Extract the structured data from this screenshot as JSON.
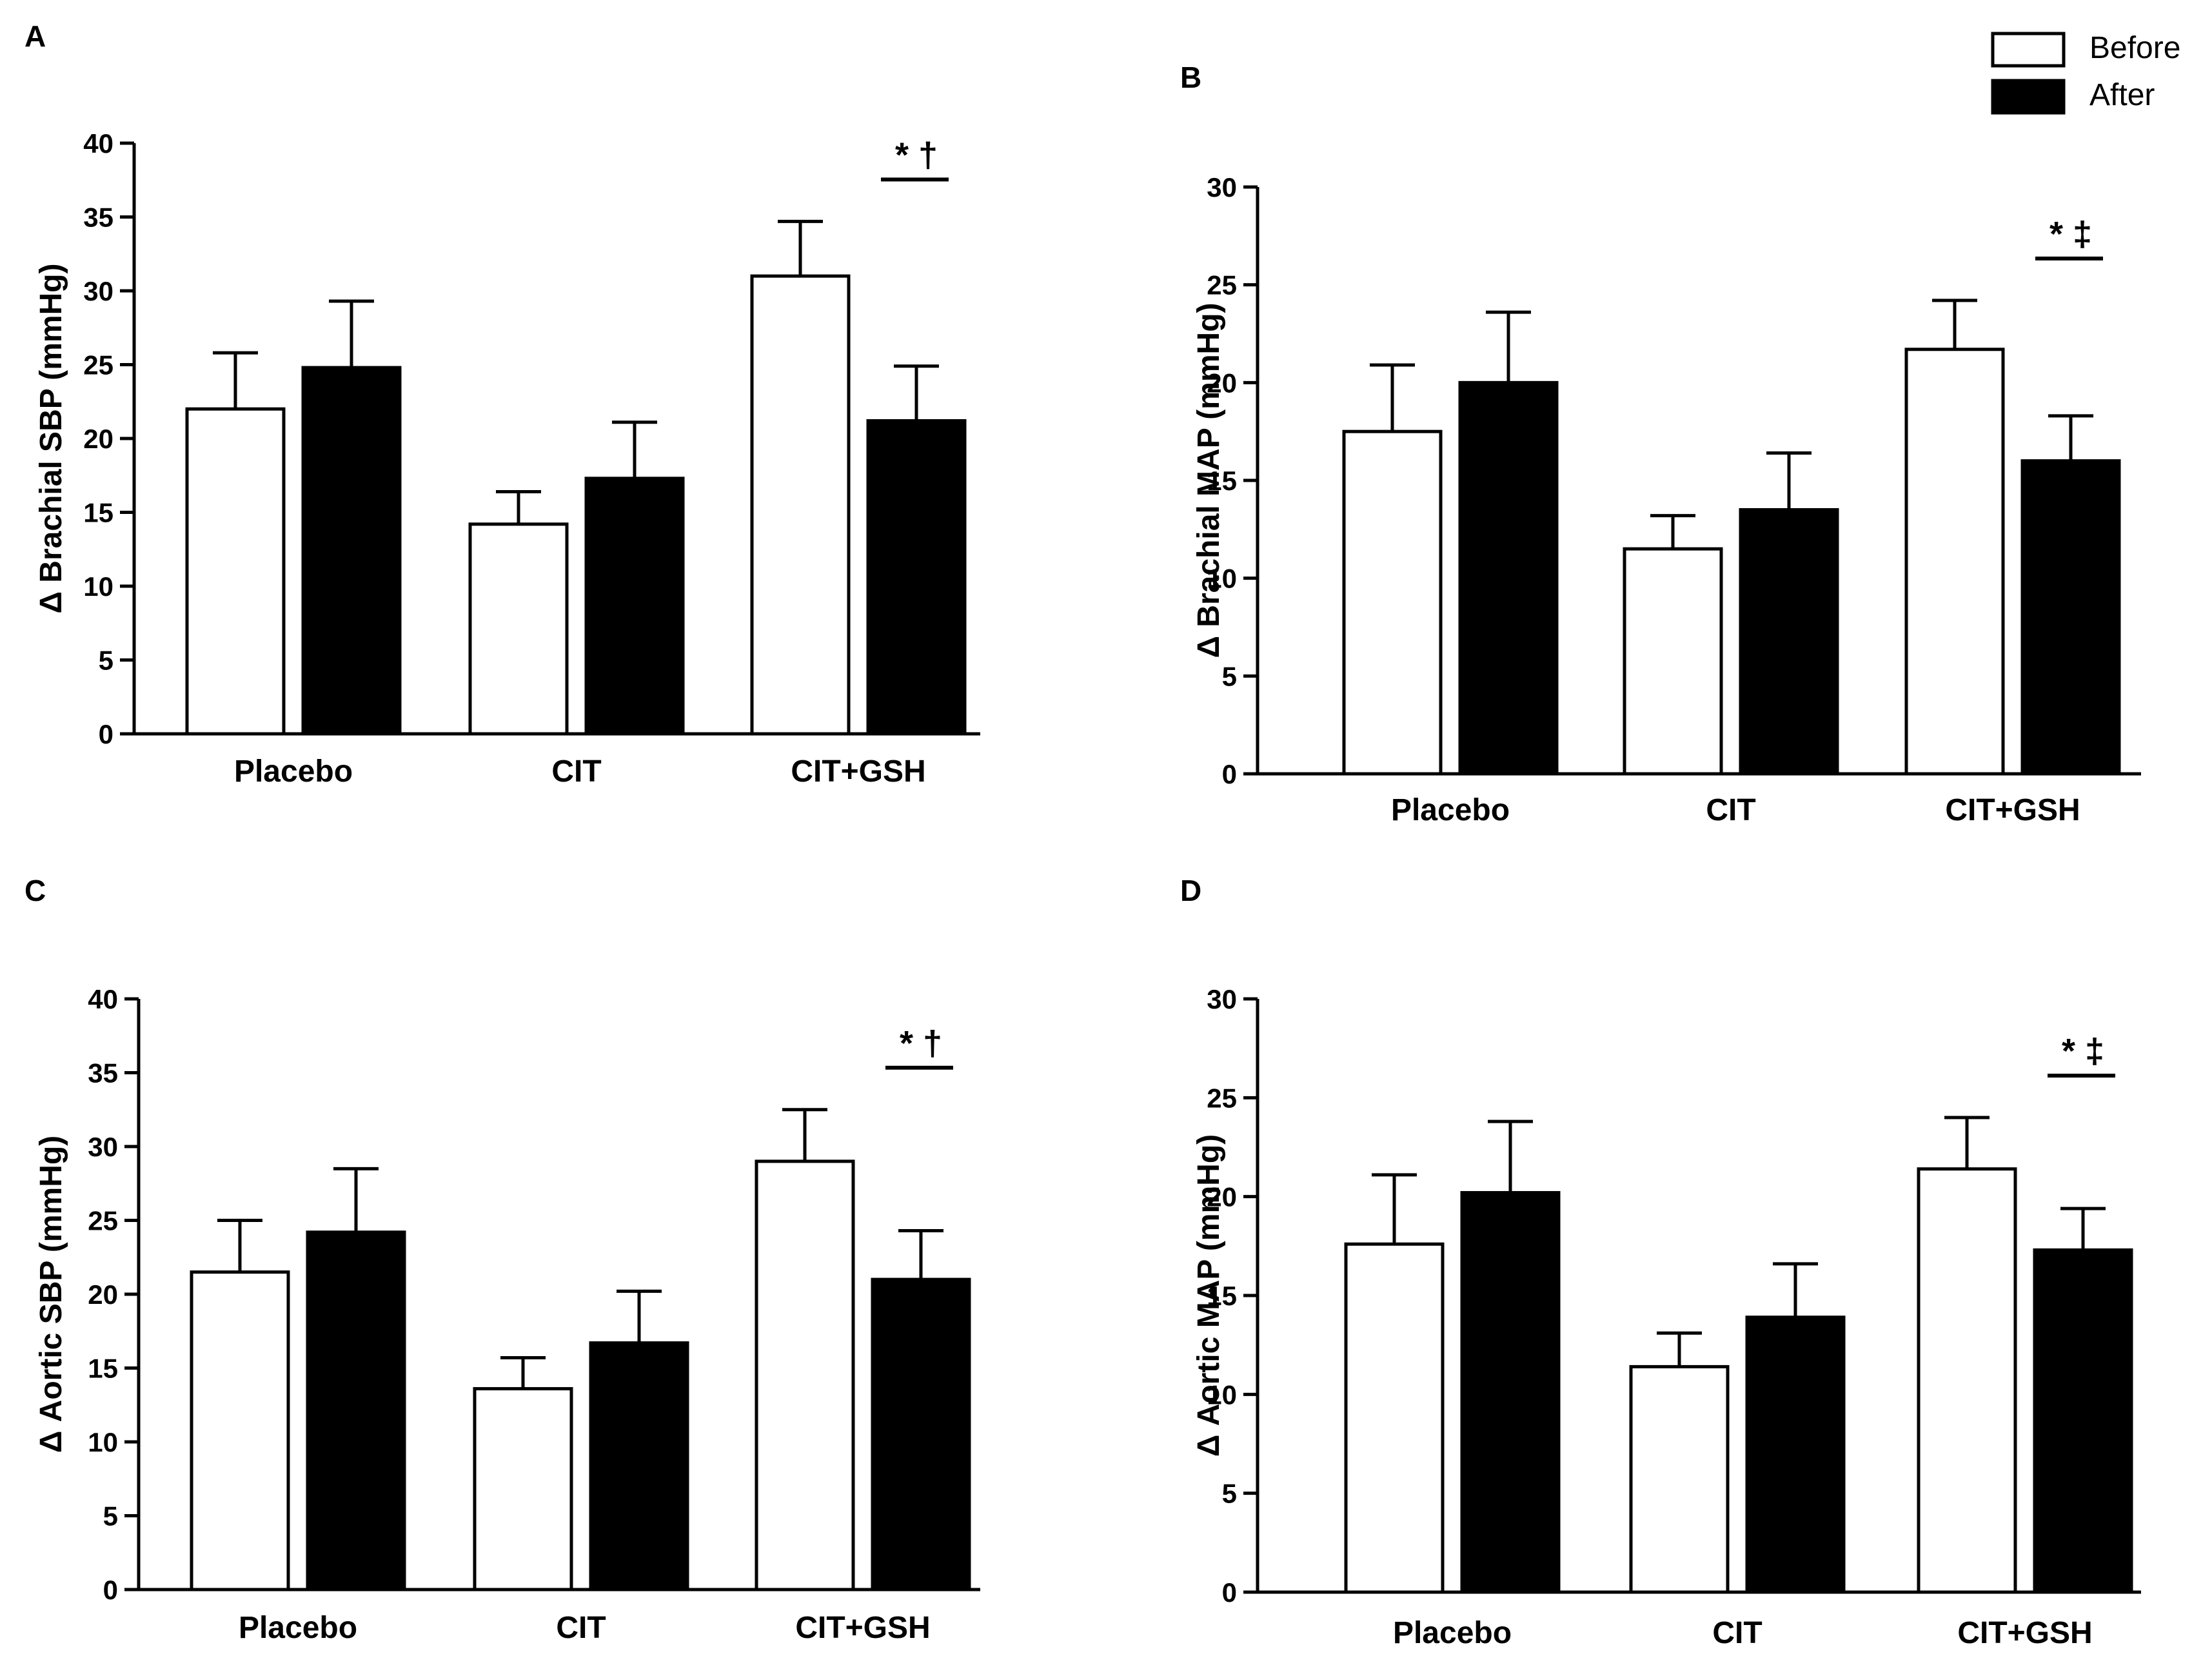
{
  "legend": [
    {
      "label": "Before",
      "color": "#ffffff"
    },
    {
      "label": "After",
      "color": "#000000"
    }
  ],
  "chart_data": [
    {
      "panel": "A",
      "type": "bar",
      "ylabel": "Δ Brachial SBP (mmHg)",
      "ylim": [
        0,
        40
      ],
      "yticks": [
        0,
        5,
        10,
        15,
        20,
        25,
        30,
        35,
        40
      ],
      "categories": [
        "Placebo",
        "CIT",
        "CIT+GSH"
      ],
      "series": [
        {
          "name": "Before",
          "values": [
            22.0,
            14.2,
            31.0
          ],
          "errors": [
            3.8,
            2.2,
            3.7
          ]
        },
        {
          "name": "After",
          "values": [
            24.8,
            17.3,
            21.2
          ],
          "errors": [
            4.5,
            3.8,
            3.7
          ]
        }
      ],
      "annotation": {
        "text": "* †",
        "category": "CIT+GSH"
      }
    },
    {
      "panel": "B",
      "type": "bar",
      "ylabel": "Δ Brachial MAP (mmHg)",
      "ylim": [
        0,
        30
      ],
      "yticks": [
        0,
        5,
        10,
        15,
        20,
        25,
        30
      ],
      "categories": [
        "Placebo",
        "CIT",
        "CIT+GSH"
      ],
      "series": [
        {
          "name": "Before",
          "values": [
            17.5,
            11.5,
            21.7
          ],
          "errors": [
            3.4,
            1.7,
            2.5
          ]
        },
        {
          "name": "After",
          "values": [
            20.0,
            13.5,
            16.0
          ],
          "errors": [
            3.6,
            2.9,
            2.3
          ]
        }
      ],
      "annotation": {
        "text": "* ‡",
        "category": "CIT+GSH"
      }
    },
    {
      "panel": "C",
      "type": "bar",
      "ylabel": "Δ Aortic SBP (mmHg)",
      "ylim": [
        0,
        40
      ],
      "yticks": [
        0,
        5,
        10,
        15,
        20,
        25,
        30,
        35,
        40
      ],
      "categories": [
        "Placebo",
        "CIT",
        "CIT+GSH"
      ],
      "series": [
        {
          "name": "Before",
          "values": [
            21.5,
            13.6,
            29.0
          ],
          "errors": [
            3.5,
            2.1,
            3.5
          ]
        },
        {
          "name": "After",
          "values": [
            24.2,
            16.7,
            21.0
          ],
          "errors": [
            4.3,
            3.5,
            3.3
          ]
        }
      ],
      "annotation": {
        "text": "* †",
        "category": "CIT+GSH"
      }
    },
    {
      "panel": "D",
      "type": "bar",
      "ylabel": "Δ Aortic MAP (mmHg)",
      "ylim": [
        0,
        30
      ],
      "yticks": [
        0,
        5,
        10,
        15,
        20,
        25,
        30
      ],
      "categories": [
        "Placebo",
        "CIT",
        "CIT+GSH"
      ],
      "series": [
        {
          "name": "Before",
          "values": [
            17.6,
            11.4,
            21.4
          ],
          "errors": [
            3.5,
            1.7,
            2.6
          ]
        },
        {
          "name": "After",
          "values": [
            20.2,
            13.9,
            17.3
          ],
          "errors": [
            3.6,
            2.7,
            2.1
          ]
        }
      ],
      "annotation": {
        "text": "* ‡",
        "category": "CIT+GSH"
      }
    }
  ]
}
